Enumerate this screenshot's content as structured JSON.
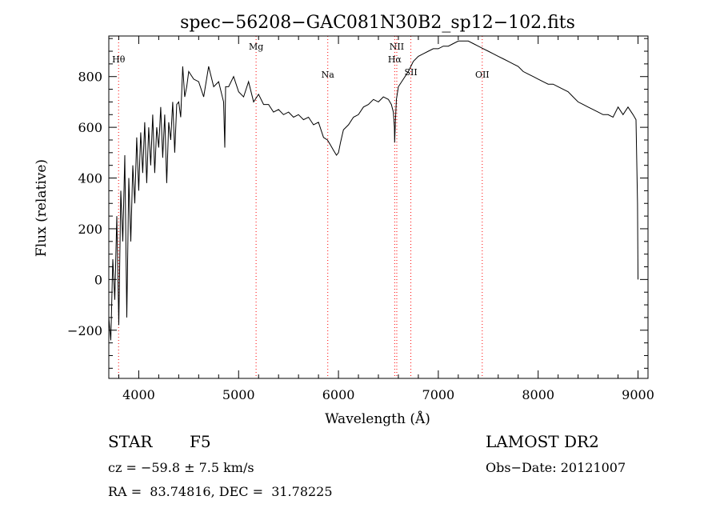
{
  "chart_data": {
    "type": "line",
    "title": "spec−56208−GAC081N30B2_sp12−102.fits",
    "xlabel": "Wavelength (Å)",
    "ylabel": "Flux (relative)",
    "xlim": [
      3700,
      9100
    ],
    "ylim": [
      -390,
      960
    ],
    "x_ticks": [
      4000,
      5000,
      6000,
      7000,
      8000,
      9000
    ],
    "x_tick_labels": [
      "4000",
      "5000",
      "6000",
      "7000",
      "8000",
      "9000"
    ],
    "y_ticks": [
      -200,
      0,
      200,
      400,
      600,
      800
    ],
    "y_tick_labels": [
      "−200",
      "0",
      "200",
      "400",
      "600",
      "800"
    ],
    "grid": false,
    "line_color": "#000000",
    "marker_color": "#ff0000",
    "series": [
      {
        "x": [
          3700,
          3720,
          3740,
          3760,
          3780,
          3800,
          3820,
          3840,
          3860,
          3880,
          3900,
          3920,
          3940,
          3960,
          3980,
          4000,
          4020,
          4040,
          4060,
          4080,
          4100,
          4120,
          4140,
          4160,
          4180,
          4200,
          4220,
          4240,
          4260,
          4280,
          4300,
          4320,
          4340,
          4360,
          4380,
          4400,
          4420,
          4440,
          4460,
          4480,
          4500,
          4550,
          4600,
          4650,
          4700,
          4750,
          4800,
          4850,
          4862,
          4870,
          4900,
          4950,
          5000,
          5050,
          5100,
          5150,
          5200,
          5250,
          5300,
          5350,
          5400,
          5450,
          5500,
          5550,
          5600,
          5650,
          5700,
          5750,
          5800,
          5850,
          5890,
          5920,
          5950,
          5980,
          6000,
          6020,
          6050,
          6100,
          6150,
          6200,
          6250,
          6300,
          6350,
          6400,
          6450,
          6500,
          6530,
          6550,
          6560,
          6563,
          6570,
          6580,
          6600,
          6650,
          6700,
          6750,
          6800,
          6850,
          6900,
          6950,
          7000,
          7050,
          7100,
          7150,
          7200,
          7250,
          7300,
          7350,
          7400,
          7450,
          7500,
          7550,
          7600,
          7650,
          7700,
          7750,
          7800,
          7850,
          7900,
          7950,
          8000,
          8050,
          8100,
          8150,
          8200,
          8250,
          8300,
          8350,
          8400,
          8450,
          8500,
          8550,
          8600,
          8650,
          8700,
          8750,
          8800,
          8850,
          8900,
          8950,
          8980,
          8995,
          9000
        ],
        "y": [
          -150,
          -240,
          80,
          -80,
          250,
          -180,
          350,
          150,
          490,
          -150,
          400,
          150,
          450,
          300,
          560,
          350,
          580,
          420,
          620,
          380,
          600,
          450,
          650,
          420,
          600,
          520,
          680,
          480,
          650,
          380,
          620,
          550,
          700,
          500,
          690,
          700,
          640,
          840,
          720,
          760,
          820,
          790,
          780,
          720,
          840,
          760,
          780,
          700,
          520,
          760,
          760,
          800,
          740,
          720,
          780,
          700,
          730,
          690,
          690,
          660,
          670,
          650,
          660,
          640,
          650,
          630,
          640,
          610,
          620,
          560,
          550,
          530,
          510,
          490,
          500,
          540,
          590,
          610,
          640,
          650,
          680,
          690,
          710,
          700,
          720,
          710,
          690,
          660,
          600,
          540,
          620,
          710,
          760,
          790,
          820,
          860,
          880,
          890,
          900,
          910,
          910,
          920,
          920,
          930,
          940,
          940,
          940,
          930,
          920,
          910,
          900,
          890,
          880,
          870,
          860,
          850,
          840,
          820,
          810,
          800,
          790,
          780,
          770,
          770,
          760,
          750,
          740,
          720,
          700,
          690,
          680,
          670,
          660,
          650,
          650,
          640,
          680,
          650,
          680,
          650,
          630,
          300,
          0
        ]
      }
    ],
    "line_markers": [
      {
        "name": "Hθ",
        "x": 3798
      },
      {
        "name": "Mg",
        "x": 5175
      },
      {
        "name": "Na",
        "x": 5893
      },
      {
        "name": "Hα",
        "x": 6563
      },
      {
        "name": "NII",
        "x": 6584
      },
      {
        "name": "SII",
        "x": 6725
      },
      {
        "name": "OII",
        "x": 7440
      }
    ]
  },
  "info": {
    "class_label": "STAR",
    "subclass_label": "F5",
    "survey": "LAMOST DR2",
    "cz_line": "cz = −59.8 ± 7.5 km/s",
    "obs_date_line": "Obs−Date: 20121007",
    "coords_line": "RA =  83.74816, DEC =  31.78225"
  }
}
